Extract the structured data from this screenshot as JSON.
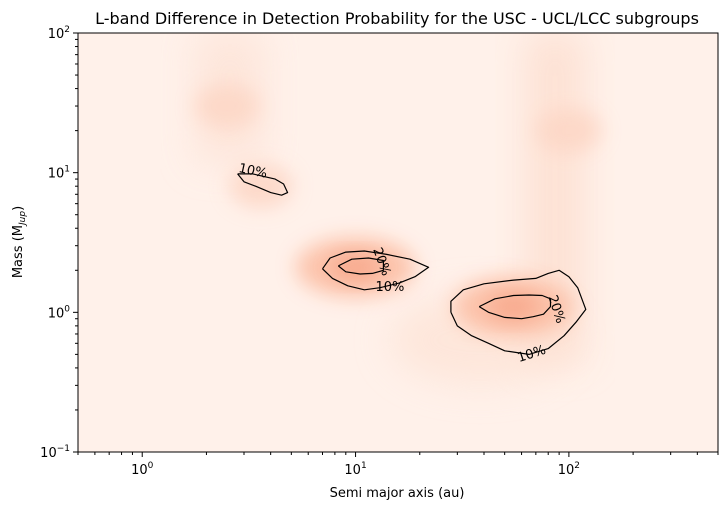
{
  "chart_data": {
    "type": "heatmap",
    "title": "L-band Difference in Detection Probability for the USC - UCL/LCC subgroups",
    "xlabel": "Semi major axis (au)",
    "ylabel": "Mass (M_Jup)",
    "ylabel_main": "Mass (M",
    "ylabel_sub": "Jup",
    "ylabel_close": ")",
    "x_scale": "log",
    "y_scale": "log",
    "xlim": [
      0.5,
      500
    ],
    "ylim": [
      0.1,
      100
    ],
    "grid": false,
    "colormap": "Reds",
    "x_ticks": [
      {
        "value": 1,
        "base": "10",
        "exp": "0"
      },
      {
        "value": 10,
        "base": "10",
        "exp": "1"
      },
      {
        "value": 100,
        "base": "10",
        "exp": "2"
      }
    ],
    "y_ticks": [
      {
        "value": 0.1,
        "base": "10",
        "exp": "−1"
      },
      {
        "value": 1,
        "base": "10",
        "exp": "0"
      },
      {
        "value": 10,
        "base": "10",
        "exp": "1"
      },
      {
        "value": 100,
        "base": "10",
        "exp": "2"
      }
    ],
    "intensity_peaks": [
      {
        "a": 3.6,
        "m": 8.0,
        "value": 0.12
      },
      {
        "a": 10.0,
        "m": 2.1,
        "value": 0.28
      },
      {
        "a": 55.0,
        "m": 1.1,
        "value": 0.26
      },
      {
        "a": 100.0,
        "m": 20.0,
        "value": 0.07
      },
      {
        "a": 2.5,
        "m": 30.0,
        "value": 0.05
      }
    ],
    "contours": [
      {
        "level": "10%",
        "points": [
          [
            2.8,
            9.8
          ],
          [
            3.0,
            8.6
          ],
          [
            3.4,
            8.0
          ],
          [
            4.0,
            7.2
          ],
          [
            4.5,
            6.9
          ],
          [
            4.8,
            7.2
          ],
          [
            4.6,
            8.3
          ],
          [
            4.2,
            9.0
          ],
          [
            3.6,
            9.5
          ],
          [
            3.3,
            9.8
          ],
          [
            2.8,
            9.8
          ]
        ],
        "label": {
          "text": "10%",
          "a": 3.3,
          "m": 10.2
        }
      },
      {
        "level": "10%",
        "points": [
          [
            7.0,
            2.05
          ],
          [
            7.8,
            1.75
          ],
          [
            9.2,
            1.55
          ],
          [
            11.0,
            1.45
          ],
          [
            13.0,
            1.5
          ],
          [
            16.0,
            1.62
          ],
          [
            19.0,
            1.8
          ],
          [
            22.0,
            2.1
          ],
          [
            18.0,
            2.4
          ],
          [
            14.0,
            2.6
          ],
          [
            11.0,
            2.75
          ],
          [
            9.0,
            2.7
          ],
          [
            7.6,
            2.45
          ],
          [
            7.0,
            2.05
          ]
        ],
        "label": {
          "text": "10%",
          "a": 14.5,
          "m": 1.5
        }
      },
      {
        "level": "20%",
        "points": [
          [
            8.3,
            2.15
          ],
          [
            9.0,
            1.95
          ],
          [
            10.5,
            1.88
          ],
          [
            12.0,
            1.9
          ],
          [
            13.5,
            2.0
          ],
          [
            13.5,
            2.35
          ],
          [
            11.5,
            2.45
          ],
          [
            9.6,
            2.4
          ],
          [
            8.3,
            2.15
          ]
        ],
        "label": {
          "text": "20%",
          "a": 13.2,
          "m": 2.3
        }
      },
      {
        "level": "10%",
        "points": [
          [
            28.0,
            1.0
          ],
          [
            30.0,
            0.8
          ],
          [
            35.0,
            0.68
          ],
          [
            42.0,
            0.6
          ],
          [
            50.0,
            0.53
          ],
          [
            65.0,
            0.5
          ],
          [
            80.0,
            0.55
          ],
          [
            95.0,
            0.68
          ],
          [
            108.0,
            0.85
          ],
          [
            120.0,
            1.05
          ],
          [
            110.0,
            1.5
          ],
          [
            100.0,
            1.8
          ],
          [
            90.0,
            2.0
          ],
          [
            80.0,
            1.9
          ],
          [
            70.0,
            1.75
          ],
          [
            55.0,
            1.7
          ],
          [
            40.0,
            1.6
          ],
          [
            32.0,
            1.45
          ],
          [
            28.0,
            1.2
          ],
          [
            28.0,
            1.0
          ]
        ],
        "label": {
          "text": "10%",
          "a": 67.0,
          "m": 0.5
        }
      },
      {
        "level": "20%",
        "points": [
          [
            38.0,
            1.1
          ],
          [
            42.0,
            1.0
          ],
          [
            50.0,
            0.92
          ],
          [
            60.0,
            0.9
          ],
          [
            68.0,
            0.93
          ],
          [
            76.0,
            0.97
          ],
          [
            82.0,
            1.1
          ],
          [
            82.0,
            1.25
          ],
          [
            75.0,
            1.32
          ],
          [
            65.0,
            1.33
          ],
          [
            55.0,
            1.32
          ],
          [
            45.0,
            1.25
          ],
          [
            38.0,
            1.1
          ]
        ],
        "label": {
          "text": "20%",
          "a": 87.0,
          "m": 1.05
        }
      }
    ]
  }
}
